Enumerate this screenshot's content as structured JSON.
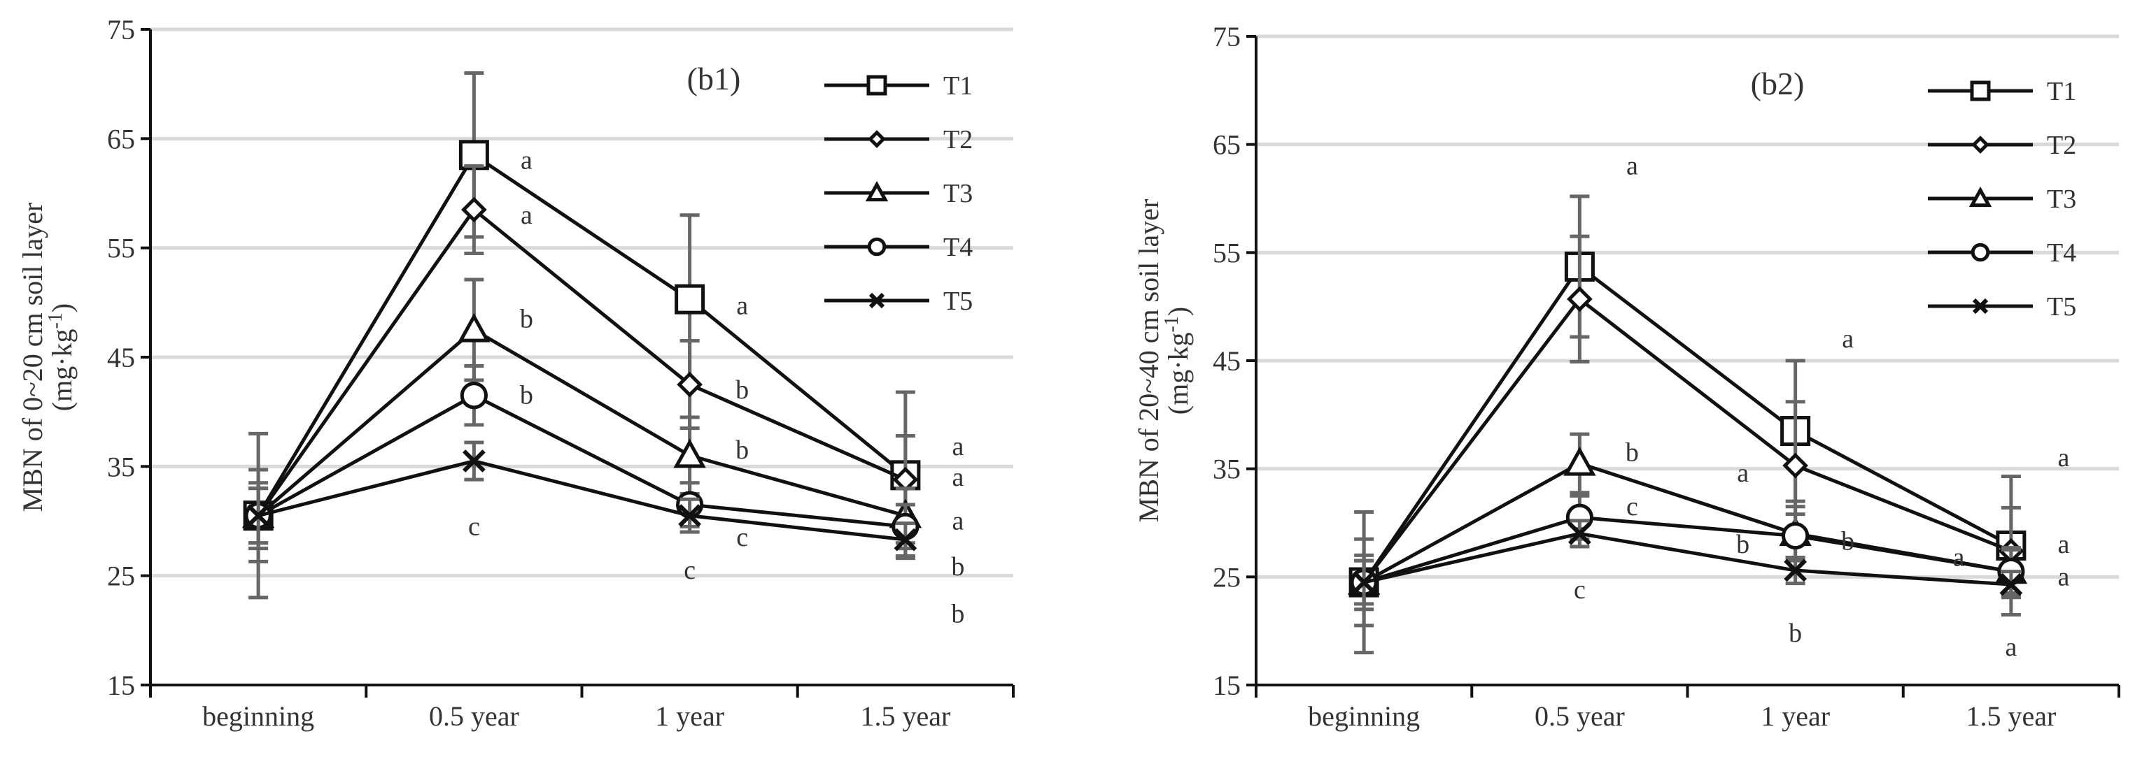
{
  "chart_data": [
    {
      "type": "line",
      "panel_label": "(b1)",
      "ylabel": "MBN of 0~20 cm soil layer",
      "ylabel_unit": "(mg·kg",
      "ylabel_unit_sup": "-1",
      "ylabel_unit_close": ")",
      "categories": [
        "beginning",
        "0.5 year",
        "1 year",
        "1.5 year"
      ],
      "ylim": [
        15,
        75
      ],
      "yticks": [
        15,
        25,
        35,
        45,
        55,
        65,
        75
      ],
      "grid": true,
      "legend_position": "top-right",
      "series": [
        {
          "name": "T1",
          "marker": "square",
          "values": [
            30.5,
            63.5,
            50.3,
            34.2
          ],
          "errors": [
            7.5,
            7.5,
            7.7,
            7.6
          ]
        },
        {
          "name": "T2",
          "marker": "diamond",
          "values": [
            30.5,
            58.5,
            42.5,
            33.8
          ],
          "errors": [
            4.2,
            4.0,
            4.0,
            4.0
          ]
        },
        {
          "name": "T3",
          "marker": "triangle",
          "values": [
            30.5,
            47.5,
            36.0,
            30.5
          ],
          "errors": [
            3.0,
            4.6,
            3.5,
            2.5
          ]
        },
        {
          "name": "T4",
          "marker": "circle",
          "values": [
            30.5,
            41.5,
            31.5,
            29.5
          ],
          "errors": [
            2.5,
            2.7,
            2.0,
            2.0
          ]
        },
        {
          "name": "T5",
          "marker": "x",
          "values": [
            30.5,
            35.5,
            30.5,
            28.3
          ],
          "errors": [
            2.5,
            1.7,
            1.5,
            1.5
          ]
        }
      ],
      "annotations": [
        {
          "text": "a",
          "category": 1,
          "y": 63.0,
          "dx": 1
        },
        {
          "text": "a",
          "category": 1,
          "y": 58.0,
          "dx": 1
        },
        {
          "text": "b",
          "category": 1,
          "y": 48.5,
          "dx": 1
        },
        {
          "text": "b",
          "category": 1,
          "y": 41.5,
          "dx": 1
        },
        {
          "text": "c",
          "category": 1,
          "y": 29.5,
          "dx": 0
        },
        {
          "text": "a",
          "category": 2,
          "y": 49.7,
          "dx": 1
        },
        {
          "text": "b",
          "category": 2,
          "y": 42.0,
          "dx": 1
        },
        {
          "text": "b",
          "category": 2,
          "y": 36.5,
          "dx": 1
        },
        {
          "text": "c",
          "category": 2,
          "y": 28.5,
          "dx": 1
        },
        {
          "text": "c",
          "category": 2,
          "y": 25.5,
          "dx": 0
        },
        {
          "text": "a",
          "category": 3,
          "y": 36.8,
          "dx": 1
        },
        {
          "text": "a",
          "category": 3,
          "y": 34.0,
          "dx": 1
        },
        {
          "text": "a",
          "category": 3,
          "y": 30.0,
          "dx": 1
        },
        {
          "text": "b",
          "category": 3,
          "y": 25.8,
          "dx": 1
        },
        {
          "text": "b",
          "category": 3,
          "y": 21.5,
          "dx": 1
        }
      ]
    },
    {
      "type": "line",
      "panel_label": "(b2)",
      "ylabel": "MBN of 20~40 cm soil layer",
      "ylabel_unit": "(mg·kg",
      "ylabel_unit_sup": "-1",
      "ylabel_unit_close": ")",
      "categories": [
        "beginning",
        "0.5 year",
        "1 year",
        "1.5 year"
      ],
      "ylim": [
        15,
        75
      ],
      "yticks": [
        15,
        25,
        35,
        45,
        55,
        65,
        75
      ],
      "grid": true,
      "legend_position": "top-right",
      "series": [
        {
          "name": "T1",
          "marker": "square",
          "values": [
            24.5,
            53.7,
            38.5,
            27.9
          ],
          "errors": [
            6.5,
            6.5,
            6.5,
            6.4
          ]
        },
        {
          "name": "T2",
          "marker": "diamond",
          "values": [
            24.5,
            50.7,
            35.3,
            27.4
          ],
          "errors": [
            4.0,
            5.8,
            5.9,
            4.0
          ]
        },
        {
          "name": "T3",
          "marker": "triangle",
          "values": [
            24.5,
            35.5,
            29.0,
            25.5
          ],
          "errors": [
            2.5,
            2.7,
            2.5,
            2.2
          ]
        },
        {
          "name": "T4",
          "marker": "circle",
          "values": [
            24.5,
            30.5,
            28.8,
            25.5
          ],
          "errors": [
            2.0,
            2.0,
            2.0,
            2.0
          ]
        },
        {
          "name": "T5",
          "marker": "x",
          "values": [
            24.5,
            29.0,
            25.6,
            24.3
          ],
          "errors": [
            2.0,
            1.2,
            1.2,
            1.2
          ]
        }
      ],
      "annotations": [
        {
          "text": "a",
          "category": 1,
          "y": 63.0,
          "dx": 1
        },
        {
          "text": "b",
          "category": 1,
          "y": 36.5,
          "dx": 1
        },
        {
          "text": "c",
          "category": 1,
          "y": 31.5,
          "dx": 1
        },
        {
          "text": "c",
          "category": 1,
          "y": 23.8,
          "dx": 0
        },
        {
          "text": "a",
          "category": 2,
          "y": 47.0,
          "dx": 1
        },
        {
          "text": "a",
          "category": 2,
          "y": 34.6,
          "dx": -1
        },
        {
          "text": "b",
          "category": 2,
          "y": 28.0,
          "dx": -1
        },
        {
          "text": "b",
          "category": 2,
          "y": 28.3,
          "dx": 1
        },
        {
          "text": "b",
          "category": 2,
          "y": 19.8,
          "dx": 0
        },
        {
          "text": "a",
          "category": 3,
          "y": 36.0,
          "dx": 1
        },
        {
          "text": "a",
          "category": 3,
          "y": 28.0,
          "dx": 1
        },
        {
          "text": "a",
          "category": 3,
          "y": 26.8,
          "dx": -1
        },
        {
          "text": "a",
          "category": 3,
          "y": 25.0,
          "dx": 1
        },
        {
          "text": "a",
          "category": 3,
          "y": 18.5,
          "dx": 0
        }
      ]
    }
  ]
}
